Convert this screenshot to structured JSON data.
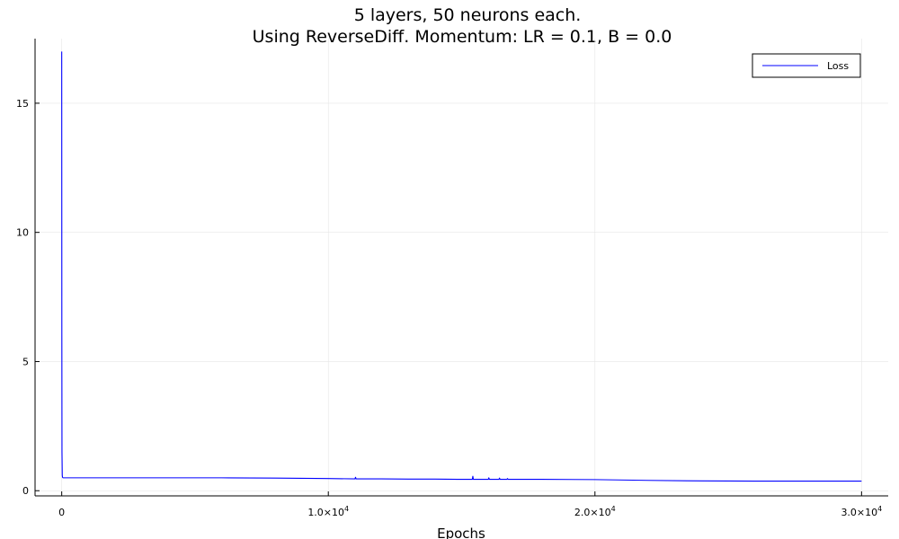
{
  "chart_data": {
    "type": "line",
    "title": "5 layers, 50 neurons each.",
    "subtitle": "Using ReverseDiff. Momentum: LR = 0.1, B = 0.0",
    "xlabel": "Epochs",
    "ylabel": "",
    "xlim": [
      -1000,
      31000
    ],
    "ylim": [
      -0.2,
      17.5
    ],
    "grid": true,
    "legend_position": "top-right",
    "x_ticks": [
      {
        "value": 0,
        "mantissa": "0",
        "exponent": ""
      },
      {
        "value": 10000,
        "mantissa": "1.0×10",
        "exponent": "4"
      },
      {
        "value": 20000,
        "mantissa": "2.0×10",
        "exponent": "4"
      },
      {
        "value": 30000,
        "mantissa": "3.0×10",
        "exponent": "4"
      }
    ],
    "y_ticks": [
      {
        "value": 0,
        "label": "0"
      },
      {
        "value": 5,
        "label": "5"
      },
      {
        "value": 10,
        "label": "10"
      },
      {
        "value": 15,
        "label": "15"
      }
    ],
    "series": [
      {
        "name": "Loss",
        "color": "#0000ff",
        "x": [
          0,
          5,
          10,
          20,
          30,
          50,
          100,
          200,
          500,
          1000,
          2000,
          4000,
          6000,
          8000,
          9000,
          10000,
          11000,
          11020,
          11040,
          12000,
          13000,
          14000,
          15000,
          15400,
          15420,
          15440,
          16000,
          16020,
          16040,
          16400,
          16420,
          16440,
          16700,
          16720,
          16740,
          17000,
          18000,
          20000,
          22000,
          24000,
          26000,
          28000,
          30000
        ],
        "y": [
          17.0,
          6.0,
          1.5,
          0.6,
          0.52,
          0.5,
          0.5,
          0.5,
          0.5,
          0.5,
          0.5,
          0.5,
          0.5,
          0.49,
          0.48,
          0.47,
          0.46,
          0.52,
          0.46,
          0.46,
          0.45,
          0.45,
          0.44,
          0.44,
          0.56,
          0.44,
          0.44,
          0.5,
          0.44,
          0.44,
          0.49,
          0.44,
          0.44,
          0.47,
          0.44,
          0.44,
          0.44,
          0.43,
          0.4,
          0.38,
          0.37,
          0.37,
          0.37
        ]
      }
    ]
  }
}
